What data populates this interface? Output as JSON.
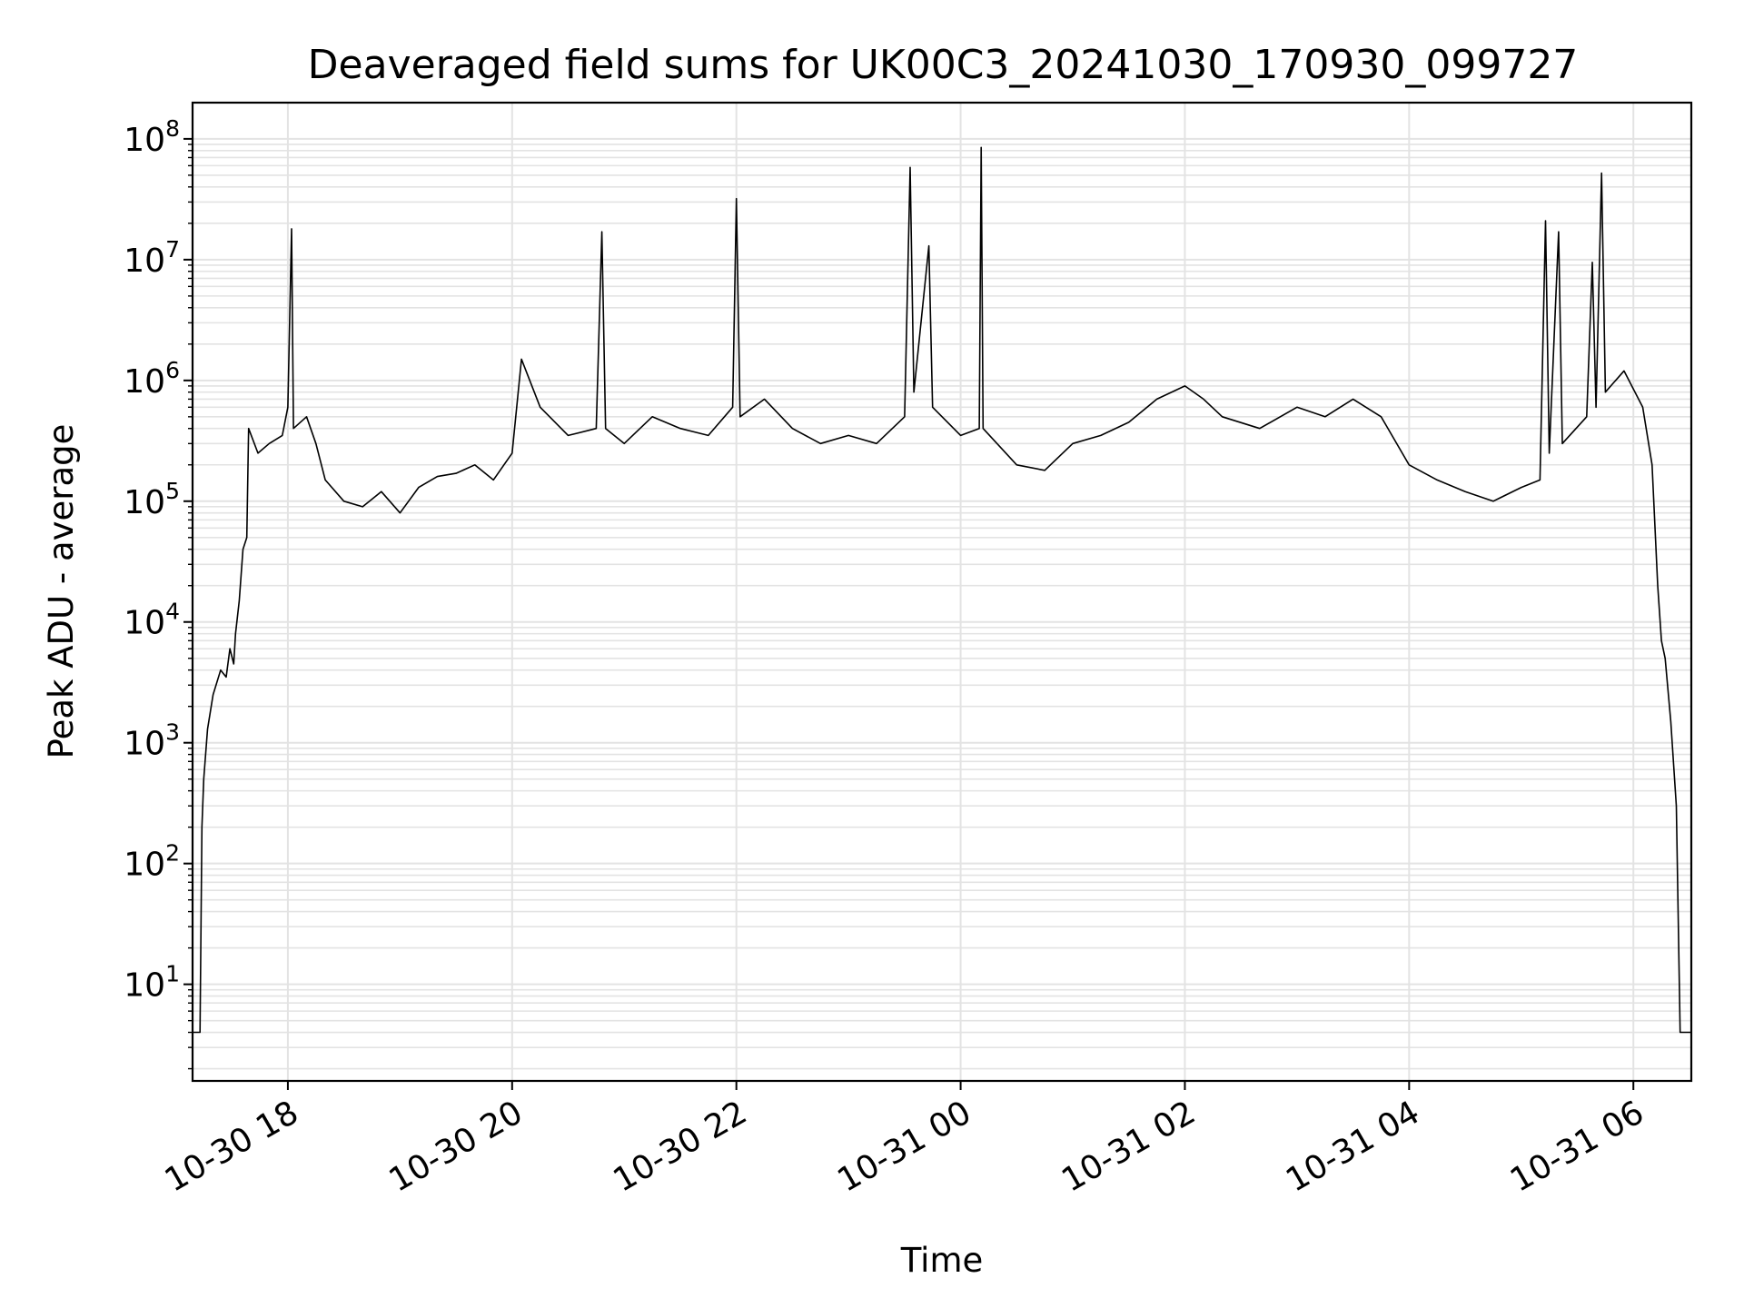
{
  "chart_data": {
    "type": "line",
    "title": "Deaveraged field sums for UK00C3_20241030_170930_099727",
    "xlabel": "Time",
    "ylabel": "Peak ADU - average",
    "yscale": "log",
    "ylim_exp": [
      0.2,
      8.3
    ],
    "xlim": [
      "2024-10-30 17:09",
      "2024-10-31 06:31"
    ],
    "grid": true,
    "line_color": "#000000",
    "grid_color": "#e3e3e3",
    "x_ticks": [
      {
        "t": "2024-10-30 18:00",
        "label": "10-30 18"
      },
      {
        "t": "2024-10-30 20:00",
        "label": "10-30 20"
      },
      {
        "t": "2024-10-30 22:00",
        "label": "10-30 22"
      },
      {
        "t": "2024-10-31 00:00",
        "label": "10-31 00"
      },
      {
        "t": "2024-10-31 02:00",
        "label": "10-31 02"
      },
      {
        "t": "2024-10-31 04:00",
        "label": "10-31 04"
      },
      {
        "t": "2024-10-31 06:00",
        "label": "10-31 06"
      }
    ],
    "y_ticks": [
      {
        "exp": 1,
        "base": "10",
        "sup": "1"
      },
      {
        "exp": 2,
        "base": "10",
        "sup": "2"
      },
      {
        "exp": 3,
        "base": "10",
        "sup": "3"
      },
      {
        "exp": 4,
        "base": "10",
        "sup": "4"
      },
      {
        "exp": 5,
        "base": "10",
        "sup": "5"
      },
      {
        "exp": 6,
        "base": "10",
        "sup": "6"
      },
      {
        "exp": 7,
        "base": "10",
        "sup": "7"
      },
      {
        "exp": 8,
        "base": "10",
        "sup": "8"
      }
    ],
    "series": [
      {
        "points": [
          [
            "2024-10-30 17:09",
            4
          ],
          [
            "2024-10-30 17:12",
            4
          ],
          [
            "2024-10-30 17:13",
            4
          ],
          [
            "2024-10-30 17:14",
            200
          ],
          [
            "2024-10-30 17:15",
            500
          ],
          [
            "2024-10-30 17:17",
            1300
          ],
          [
            "2024-10-30 17:20",
            2500
          ],
          [
            "2024-10-30 17:24",
            4000
          ],
          [
            "2024-10-30 17:27",
            3500
          ],
          [
            "2024-10-30 17:29",
            6000
          ],
          [
            "2024-10-30 17:31",
            4500
          ],
          [
            "2024-10-30 17:32",
            8000
          ],
          [
            "2024-10-30 17:34",
            15000
          ],
          [
            "2024-10-30 17:36",
            40000
          ],
          [
            "2024-10-30 17:38",
            50000
          ],
          [
            "2024-10-30 17:39",
            400000
          ],
          [
            "2024-10-30 17:44",
            250000
          ],
          [
            "2024-10-30 17:50",
            300000
          ],
          [
            "2024-10-30 17:57",
            350000
          ],
          [
            "2024-10-30 18:00",
            600000
          ],
          [
            "2024-10-30 18:02",
            18000000
          ],
          [
            "2024-10-30 18:03",
            400000
          ],
          [
            "2024-10-30 18:10",
            500000
          ],
          [
            "2024-10-30 18:15",
            300000
          ],
          [
            "2024-10-30 18:20",
            150000
          ],
          [
            "2024-10-30 18:30",
            100000
          ],
          [
            "2024-10-30 18:40",
            90000
          ],
          [
            "2024-10-30 18:50",
            120000
          ],
          [
            "2024-10-30 19:00",
            80000
          ],
          [
            "2024-10-30 19:10",
            130000
          ],
          [
            "2024-10-30 19:20",
            160000
          ],
          [
            "2024-10-30 19:30",
            170000
          ],
          [
            "2024-10-30 19:40",
            200000
          ],
          [
            "2024-10-30 19:50",
            150000
          ],
          [
            "2024-10-30 20:00",
            250000
          ],
          [
            "2024-10-30 20:05",
            1500000
          ],
          [
            "2024-10-30 20:15",
            600000
          ],
          [
            "2024-10-30 20:30",
            350000
          ],
          [
            "2024-10-30 20:45",
            400000
          ],
          [
            "2024-10-30 20:48",
            17000000
          ],
          [
            "2024-10-30 20:50",
            400000
          ],
          [
            "2024-10-30 21:00",
            300000
          ],
          [
            "2024-10-30 21:15",
            500000
          ],
          [
            "2024-10-30 21:30",
            400000
          ],
          [
            "2024-10-30 21:45",
            350000
          ],
          [
            "2024-10-30 21:58",
            600000
          ],
          [
            "2024-10-30 22:00",
            32000000
          ],
          [
            "2024-10-30 22:02",
            500000
          ],
          [
            "2024-10-30 22:15",
            700000
          ],
          [
            "2024-10-30 22:30",
            400000
          ],
          [
            "2024-10-30 22:45",
            300000
          ],
          [
            "2024-10-30 23:00",
            350000
          ],
          [
            "2024-10-30 23:15",
            300000
          ],
          [
            "2024-10-30 23:30",
            500000
          ],
          [
            "2024-10-30 23:33",
            58000000
          ],
          [
            "2024-10-30 23:35",
            800000
          ],
          [
            "2024-10-30 23:43",
            13000000
          ],
          [
            "2024-10-30 23:45",
            600000
          ],
          [
            "2024-10-31 00:00",
            350000
          ],
          [
            "2024-10-31 00:10",
            400000
          ],
          [
            "2024-10-31 00:11",
            85000000
          ],
          [
            "2024-10-31 00:12",
            400000
          ],
          [
            "2024-10-31 00:30",
            200000
          ],
          [
            "2024-10-31 00:45",
            180000
          ],
          [
            "2024-10-31 01:00",
            300000
          ],
          [
            "2024-10-31 01:15",
            350000
          ],
          [
            "2024-10-31 01:30",
            450000
          ],
          [
            "2024-10-31 01:45",
            700000
          ],
          [
            "2024-10-31 02:00",
            900000
          ],
          [
            "2024-10-31 02:10",
            700000
          ],
          [
            "2024-10-31 02:20",
            500000
          ],
          [
            "2024-10-31 02:40",
            400000
          ],
          [
            "2024-10-31 03:00",
            600000
          ],
          [
            "2024-10-31 03:15",
            500000
          ],
          [
            "2024-10-31 03:30",
            700000
          ],
          [
            "2024-10-31 03:45",
            500000
          ],
          [
            "2024-10-31 04:00",
            200000
          ],
          [
            "2024-10-31 04:15",
            150000
          ],
          [
            "2024-10-31 04:30",
            120000
          ],
          [
            "2024-10-31 04:45",
            100000
          ],
          [
            "2024-10-31 05:00",
            130000
          ],
          [
            "2024-10-31 05:10",
            150000
          ],
          [
            "2024-10-31 05:13",
            21000000
          ],
          [
            "2024-10-31 05:15",
            250000
          ],
          [
            "2024-10-31 05:20",
            17000000
          ],
          [
            "2024-10-31 05:22",
            300000
          ],
          [
            "2024-10-31 05:35",
            500000
          ],
          [
            "2024-10-31 05:38",
            9500000
          ],
          [
            "2024-10-31 05:40",
            600000
          ],
          [
            "2024-10-31 05:43",
            52000000
          ],
          [
            "2024-10-31 05:45",
            800000
          ],
          [
            "2024-10-31 05:55",
            1200000
          ],
          [
            "2024-10-31 06:05",
            600000
          ],
          [
            "2024-10-31 06:10",
            200000
          ],
          [
            "2024-10-31 06:13",
            20000
          ],
          [
            "2024-10-31 06:15",
            7000
          ],
          [
            "2024-10-31 06:17",
            5000
          ],
          [
            "2024-10-31 06:20",
            1500
          ],
          [
            "2024-10-31 06:23",
            300
          ],
          [
            "2024-10-31 06:25",
            4
          ],
          [
            "2024-10-31 06:31",
            4
          ]
        ]
      }
    ]
  }
}
